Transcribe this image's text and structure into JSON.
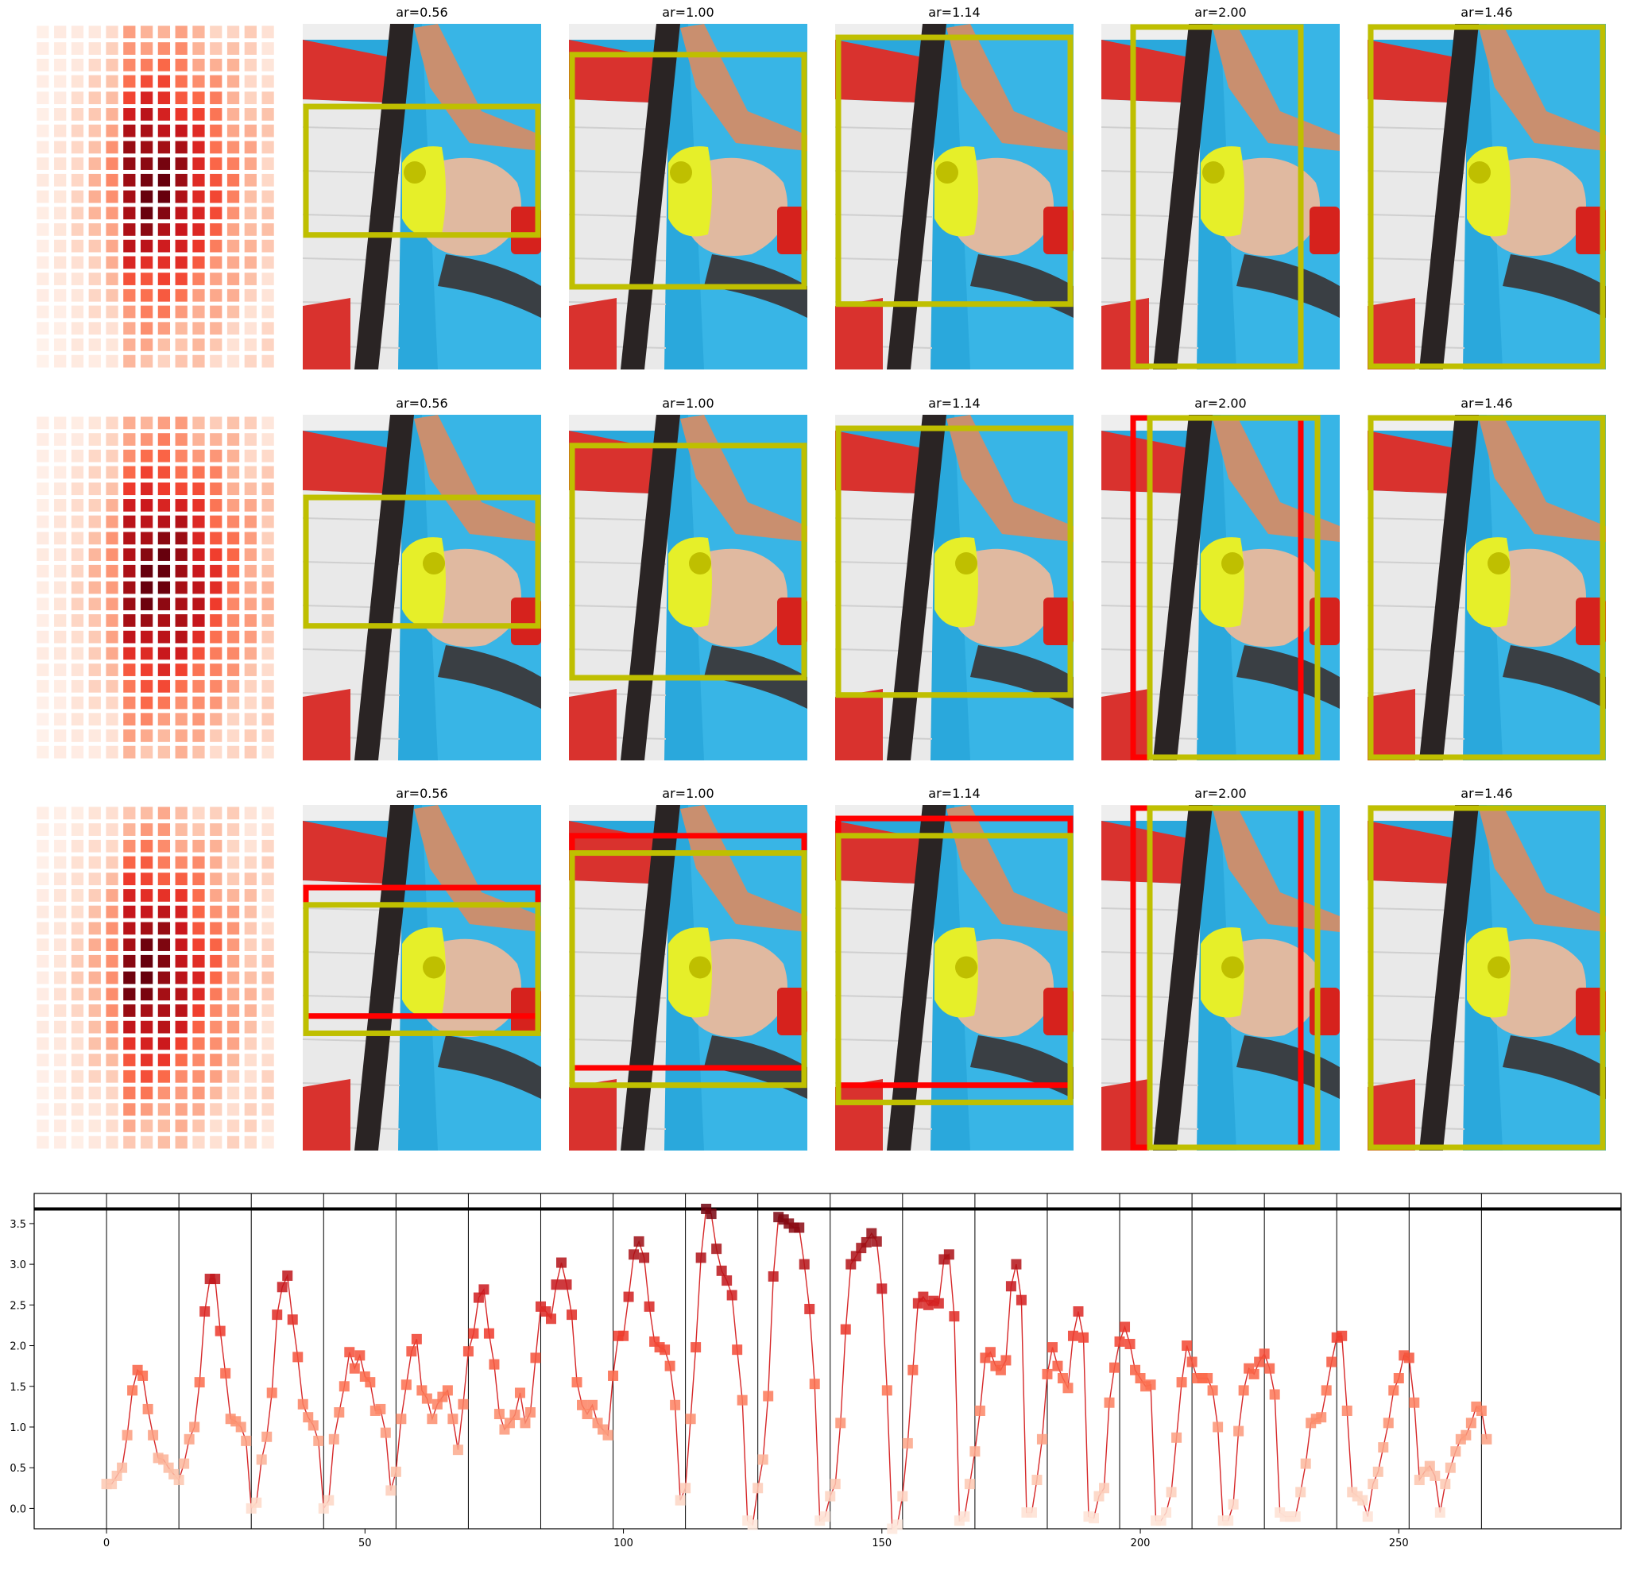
{
  "figure": {
    "rows": [
      {
        "tiles": [
          {
            "title": "ar=0.56",
            "boxes": [
              {
                "color": "#bfbf00",
                "x0": 0.0,
                "y0": 0.23,
                "x1": 1.0,
                "y1": 0.62
              }
            ],
            "dot": [
              0.47,
              0.43
            ]
          },
          {
            "title": "ar=1.00",
            "boxes": [
              {
                "color": "#bfbf00",
                "x0": 0.0,
                "y0": 0.08,
                "x1": 1.0,
                "y1": 0.77
              }
            ],
            "dot": [
              0.47,
              0.43
            ]
          },
          {
            "title": "ar=1.14",
            "boxes": [
              {
                "color": "#bfbf00",
                "x0": 0.0,
                "y0": 0.03,
                "x1": 1.0,
                "y1": 0.82
              }
            ],
            "dot": [
              0.47,
              0.43
            ]
          },
          {
            "title": "ar=2.00",
            "boxes": [
              {
                "color": "#bfbf00",
                "x0": 0.12,
                "y0": 0.0,
                "x1": 0.85,
                "y1": 1.0
              }
            ],
            "dot": [
              0.47,
              0.43
            ]
          },
          {
            "title": "ar=1.46",
            "boxes": [
              {
                "color": "#bfbf00",
                "x0": 0.0,
                "y0": 0.0,
                "x1": 1.0,
                "y1": 1.0
              }
            ],
            "dot": [
              0.47,
              0.43
            ]
          }
        ]
      },
      {
        "tiles": [
          {
            "title": "ar=0.56",
            "boxes": [
              {
                "color": "#bfbf00",
                "x0": 0.0,
                "y0": 0.23,
                "x1": 1.0,
                "y1": 0.62
              }
            ],
            "dot": [
              0.55,
              0.43
            ]
          },
          {
            "title": "ar=1.00",
            "boxes": [
              {
                "color": "#bfbf00",
                "x0": 0.0,
                "y0": 0.08,
                "x1": 1.0,
                "y1": 0.77
              }
            ],
            "dot": [
              0.55,
              0.43
            ]
          },
          {
            "title": "ar=1.14",
            "boxes": [
              {
                "color": "#bfbf00",
                "x0": 0.0,
                "y0": 0.03,
                "x1": 1.0,
                "y1": 0.82
              }
            ],
            "dot": [
              0.55,
              0.43
            ]
          },
          {
            "title": "ar=2.00",
            "boxes": [
              {
                "color": "#ff0000",
                "x0": 0.12,
                "y0": 0.0,
                "x1": 0.85,
                "y1": 1.0
              },
              {
                "color": "#bfbf00",
                "x0": 0.19,
                "y0": 0.0,
                "x1": 0.92,
                "y1": 1.0
              }
            ],
            "dot": [
              0.55,
              0.43
            ]
          },
          {
            "title": "ar=1.46",
            "boxes": [
              {
                "color": "#bfbf00",
                "x0": 0.0,
                "y0": 0.0,
                "x1": 1.0,
                "y1": 1.0
              }
            ],
            "dot": [
              0.55,
              0.43
            ]
          }
        ]
      },
      {
        "tiles": [
          {
            "title": "ar=0.56",
            "boxes": [
              {
                "color": "#ff0000",
                "x0": 0.0,
                "y0": 0.23,
                "x1": 1.0,
                "y1": 0.62
              },
              {
                "color": "#bfbf00",
                "x0": 0.0,
                "y0": 0.28,
                "x1": 1.0,
                "y1": 0.67
              }
            ],
            "dot": [
              0.55,
              0.47
            ]
          },
          {
            "title": "ar=1.00",
            "boxes": [
              {
                "color": "#ff0000",
                "x0": 0.0,
                "y0": 0.08,
                "x1": 1.0,
                "y1": 0.77
              },
              {
                "color": "#bfbf00",
                "x0": 0.0,
                "y0": 0.13,
                "x1": 1.0,
                "y1": 0.82
              }
            ],
            "dot": [
              0.55,
              0.47
            ]
          },
          {
            "title": "ar=1.14",
            "boxes": [
              {
                "color": "#ff0000",
                "x0": 0.0,
                "y0": 0.03,
                "x1": 1.0,
                "y1": 0.82
              },
              {
                "color": "#bfbf00",
                "x0": 0.0,
                "y0": 0.08,
                "x1": 1.0,
                "y1": 0.87
              }
            ],
            "dot": [
              0.55,
              0.47
            ]
          },
          {
            "title": "ar=2.00",
            "boxes": [
              {
                "color": "#ff0000",
                "x0": 0.12,
                "y0": 0.0,
                "x1": 0.85,
                "y1": 1.0
              },
              {
                "color": "#bfbf00",
                "x0": 0.19,
                "y0": 0.0,
                "x1": 0.92,
                "y1": 1.0
              }
            ],
            "dot": [
              0.55,
              0.47
            ]
          },
          {
            "title": "ar=1.46",
            "boxes": [
              {
                "color": "#bfbf00",
                "x0": 0.0,
                "y0": 0.0,
                "x1": 1.0,
                "y1": 1.0
              }
            ],
            "dot": [
              0.55,
              0.47
            ]
          }
        ]
      }
    ]
  },
  "chart_data": {
    "type": "line",
    "title": "",
    "xlabel": "",
    "ylabel": "",
    "xlim": [
      -14,
      293
    ],
    "ylim": [
      -0.25,
      3.87
    ],
    "xticks": [
      0,
      50,
      100,
      150,
      200,
      250
    ],
    "yticks": [
      0.0,
      0.5,
      1.0,
      1.5,
      2.0,
      2.5,
      3.0,
      3.5
    ],
    "yticklabels": [
      "0.0",
      "0.5",
      "1.0",
      "1.5",
      "2.0",
      "2.5",
      "3.0",
      "3.5"
    ],
    "grid": false,
    "vlines": [
      0,
      14,
      28,
      42,
      56,
      70,
      84,
      98,
      112,
      126,
      140,
      154,
      168,
      182,
      196,
      210,
      224,
      238,
      252,
      266
    ],
    "hline": 3.68,
    "line_color": "#d62728",
    "marker": "square",
    "cmap": "Reds",
    "y": [
      0.3,
      0.3,
      0.4,
      0.5,
      0.9,
      1.45,
      1.7,
      1.63,
      1.22,
      0.9,
      0.62,
      0.6,
      0.5,
      0.42,
      0.35,
      0.55,
      0.85,
      1.0,
      1.55,
      2.42,
      2.82,
      2.82,
      2.18,
      1.66,
      1.1,
      1.07,
      1.0,
      0.83,
      0.0,
      0.07,
      0.6,
      0.88,
      1.42,
      2.38,
      2.72,
      2.86,
      2.32,
      1.86,
      1.28,
      1.12,
      1.02,
      0.83,
      0.0,
      0.1,
      0.85,
      1.18,
      1.5,
      1.92,
      1.72,
      1.88,
      1.62,
      1.55,
      1.2,
      1.22,
      0.93,
      0.22,
      0.45,
      1.1,
      1.52,
      1.93,
      2.08,
      1.45,
      1.35,
      1.1,
      1.28,
      1.37,
      1.45,
      1.1,
      0.72,
      1.28,
      1.93,
      2.15,
      2.59,
      2.69,
      2.15,
      1.77,
      1.16,
      0.97,
      1.05,
      1.15,
      1.42,
      1.05,
      1.18,
      1.85,
      2.48,
      2.42,
      2.33,
      2.75,
      3.02,
      2.75,
      2.38,
      1.55,
      1.27,
      1.16,
      1.27,
      1.05,
      0.97,
      0.9,
      1.63,
      2.12,
      2.12,
      2.6,
      3.12,
      3.28,
      3.08,
      2.48,
      2.05,
      1.98,
      1.95,
      1.75,
      1.27,
      0.1,
      0.25,
      1.1,
      1.98,
      3.08,
      3.68,
      3.62,
      3.19,
      2.92,
      2.8,
      2.62,
      1.95,
      1.33,
      -0.15,
      -0.2,
      0.25,
      0.6,
      1.38,
      2.85,
      3.58,
      3.55,
      3.5,
      3.45,
      3.45,
      3.0,
      2.45,
      1.53,
      -0.15,
      -0.1,
      0.15,
      0.3,
      1.05,
      2.2,
      3.0,
      3.1,
      3.2,
      3.27,
      3.38,
      3.28,
      2.7,
      1.45,
      -0.25,
      -0.2,
      0.15,
      0.8,
      1.7,
      2.52,
      2.6,
      2.5,
      2.55,
      2.52,
      3.06,
      3.12,
      2.36,
      -0.15,
      -0.1,
      0.3,
      0.7,
      1.2,
      1.85,
      1.92,
      1.75,
      1.7,
      1.82,
      2.73,
      3.0,
      2.56,
      -0.05,
      -0.05,
      0.35,
      0.85,
      1.65,
      1.98,
      1.75,
      1.6,
      1.48,
      2.12,
      2.42,
      2.1,
      -0.1,
      -0.12,
      0.15,
      0.25,
      1.3,
      1.73,
      2.05,
      2.23,
      2.02,
      1.7,
      1.6,
      1.5,
      1.52,
      -0.15,
      -0.15,
      -0.05,
      0.2,
      0.87,
      1.55,
      2.0,
      1.8,
      1.6,
      1.6,
      1.6,
      1.45,
      1.0,
      -0.15,
      -0.15,
      0.05,
      0.95,
      1.45,
      1.72,
      1.65,
      1.8,
      1.9,
      1.72,
      1.4,
      -0.05,
      -0.1,
      -0.1,
      -0.1,
      0.2,
      0.55,
      1.05,
      1.1,
      1.12,
      1.45,
      1.8,
      2.1,
      2.12,
      1.2,
      0.2,
      0.15,
      0.1,
      -0.1,
      0.3,
      0.45,
      0.75,
      1.05,
      1.45,
      1.6,
      1.88,
      1.85,
      1.3,
      0.35,
      0.45,
      0.52,
      0.4,
      -0.05,
      0.3,
      0.5,
      0.7,
      0.85,
      0.9,
      1.05,
      1.25,
      1.2,
      0.85
    ]
  },
  "heatmap": {
    "cols": 14,
    "rows": 21,
    "cmap": "Reds",
    "variants": [
      {
        "center": [
          6.3,
          9.2
        ],
        "spread": [
          3.2,
          5.4
        ]
      },
      {
        "center": [
          6.6,
          9.4
        ],
        "spread": [
          3.3,
          5.6
        ]
      },
      {
        "center": [
          6.0,
          9.6
        ],
        "spread": [
          3.1,
          5.2
        ]
      }
    ],
    "faint_cols": [
      0,
      1,
      2,
      3,
      4
    ]
  }
}
